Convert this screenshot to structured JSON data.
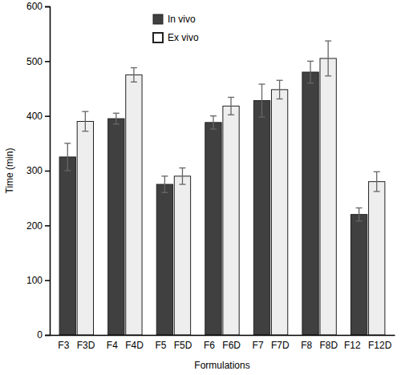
{
  "chart_data": {
    "type": "bar",
    "x_label": "Formulations",
    "y_label": "Time (min)",
    "categories": [
      "F3 F3D",
      "F4 F4D",
      "F5 F5D",
      "F6 F6D",
      "F7 F7D",
      "F8 F8D",
      "F12 F12D"
    ],
    "series": [
      {
        "name": "In vivo",
        "color": "#404040",
        "values": [
          325,
          395,
          275,
          388,
          428,
          480,
          220
        ],
        "errors": [
          25,
          10,
          15,
          12,
          30,
          20,
          12
        ]
      },
      {
        "name": "Ex vivo",
        "color": "#eeeeee",
        "values": [
          390,
          475,
          290,
          418,
          448,
          505,
          280
        ],
        "errors": [
          18,
          13,
          15,
          16,
          17,
          32,
          18
        ]
      }
    ],
    "ylim": [
      0,
      600
    ],
    "yticks": [
      0,
      100,
      200,
      300,
      400,
      500,
      600
    ],
    "grid": false,
    "legend": "top"
  }
}
